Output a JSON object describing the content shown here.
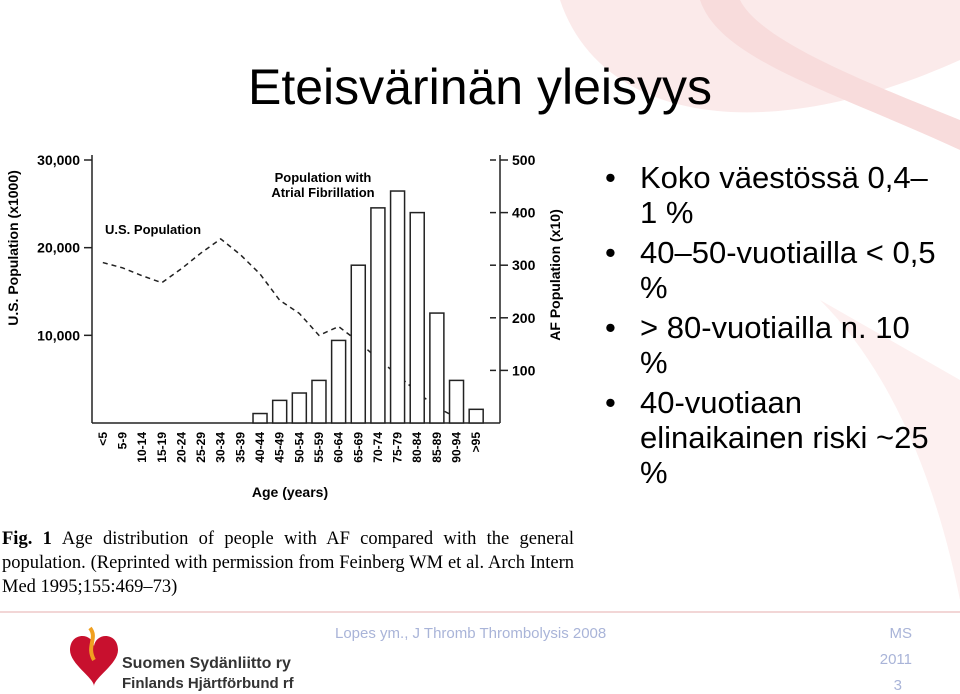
{
  "slide": {
    "title": "Eteisvärinän yleisyys",
    "bullets": [
      "Koko väestössä 0,4–1 %",
      "40–50-vuotiailla < 0,5 %",
      "> 80-vuotiailla n. 10 %",
      "40-vuotiaan elinaikainen riski ~25 %"
    ],
    "caption_label": "Fig. 1",
    "caption": "Age distribution of people with AF compared with the general population. (Reprinted with permission from Feinberg WM et al. Arch Intern Med 1995;155:469–73)",
    "source": "Lopes ym., J Thromb Thrombolysis 2008",
    "author": "MS",
    "year": "2011",
    "page": "3",
    "logo_line1": "Suomen Sydänliitto ry",
    "logo_line2": "Finlands Hjärtförbund rf"
  },
  "chart_data": {
    "type": "bar-line",
    "ylabel": "U.S. Population (x1000)",
    "y2label": "AF Population (x10)",
    "xlabel": "Age (years)",
    "categories": [
      "<5",
      "5-9",
      "10-14",
      "15-19",
      "20-24",
      "25-29",
      "30-34",
      "35-39",
      "40-44",
      "45-49",
      "50-54",
      "55-59",
      "60-64",
      "65-69",
      "70-74",
      "75-79",
      "80-84",
      "85-89",
      "90-94",
      ">95"
    ],
    "ylim": [
      0,
      30000
    ],
    "yticks": [
      {
        "value": 10000,
        "label": "10,000"
      },
      {
        "value": 20000,
        "label": "20,000"
      },
      {
        "value": 30000,
        "label": "30,000"
      }
    ],
    "y2lim": [
      0,
      500
    ],
    "y2ticks": [
      100,
      200,
      300,
      400,
      500
    ],
    "series": [
      {
        "name": "U.S. Population",
        "type": "line",
        "color": "#222222",
        "values": [
          18300,
          17700,
          16800,
          16000,
          17600,
          19400,
          21000,
          19200,
          17000,
          14000,
          12500,
          10000,
          11000,
          9300,
          7300,
          5500,
          3500,
          1800,
          600,
          null
        ]
      },
      {
        "name": "Population with Atrial Fibrillation",
        "type": "bar",
        "axis": "y2",
        "color": "#ffffff",
        "values": [
          null,
          null,
          null,
          null,
          null,
          null,
          null,
          null,
          18,
          43,
          57,
          81,
          157,
          300,
          409,
          441,
          400,
          209,
          81,
          26
        ]
      }
    ]
  }
}
